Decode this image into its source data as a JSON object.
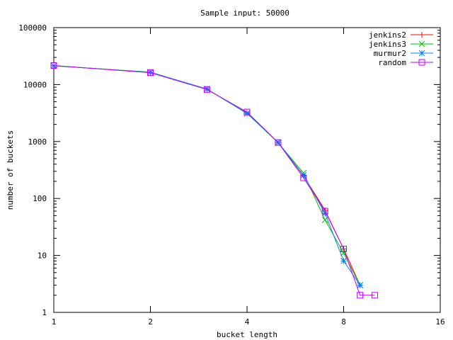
{
  "chart_data": {
    "type": "line",
    "title": "Sample input: 50000",
    "xlabel": "bucket length",
    "ylabel": "number of buckets",
    "x_scale": "log2",
    "y_scale": "log10",
    "xlim": [
      1,
      16
    ],
    "ylim": [
      1,
      100000
    ],
    "x_ticks": [
      1,
      2,
      4,
      8,
      16
    ],
    "y_ticks": [
      1,
      10,
      100,
      1000,
      10000,
      100000
    ],
    "grid": false,
    "legend_position": "top-right",
    "series": [
      {
        "name": "jenkins2",
        "color": "#ff0000",
        "marker": "plus",
        "x": [
          1,
          2,
          3,
          4,
          5,
          6,
          7,
          8,
          9
        ],
        "y": [
          21500,
          16300,
          8300,
          3200,
          960,
          250,
          62,
          13,
          3
        ]
      },
      {
        "name": "jenkins3",
        "color": "#00c000",
        "marker": "cross",
        "x": [
          1,
          2,
          3,
          4,
          5,
          6,
          7,
          8,
          9
        ],
        "y": [
          21300,
          16600,
          8300,
          3150,
          950,
          280,
          42,
          11,
          3
        ]
      },
      {
        "name": "murmur2",
        "color": "#0080ff",
        "marker": "star",
        "x": [
          1,
          2,
          3,
          4,
          5,
          6,
          7,
          8,
          9
        ],
        "y": [
          21400,
          16400,
          8400,
          3100,
          970,
          255,
          55,
          8,
          3
        ]
      },
      {
        "name": "random",
        "color": "#c000ff",
        "marker": "square",
        "x": [
          1,
          2,
          3,
          4,
          5,
          6,
          7,
          8,
          9,
          10
        ],
        "y": [
          21600,
          16200,
          8200,
          3300,
          960,
          230,
          60,
          13,
          2,
          2
        ]
      }
    ]
  }
}
